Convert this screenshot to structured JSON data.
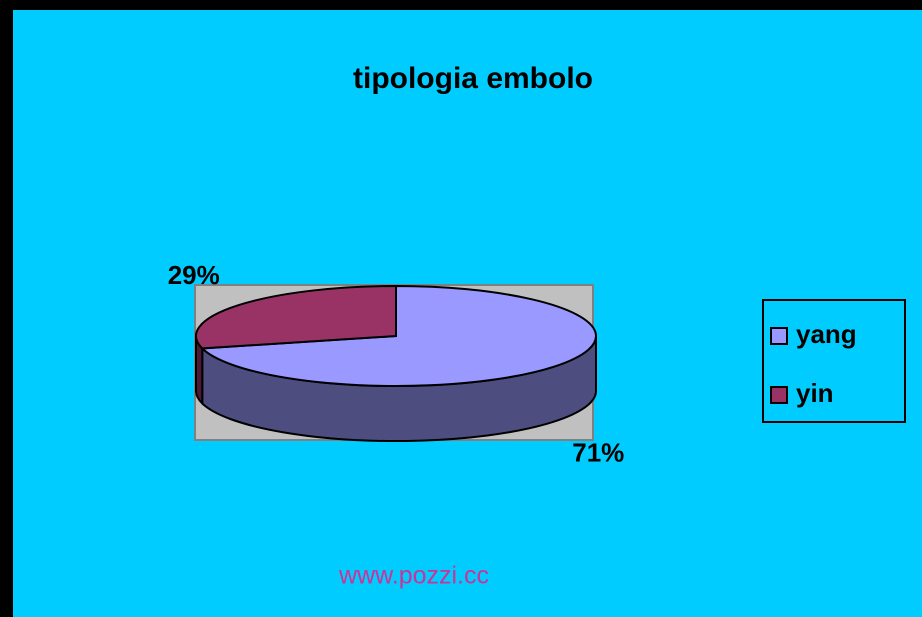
{
  "chart_data": {
    "type": "pie",
    "title": "tipologia embolo",
    "categories": [
      "yang",
      "yin"
    ],
    "values": [
      71,
      29
    ],
    "value_labels": [
      "71%",
      "29%"
    ],
    "colors": [
      "#9999ff",
      "#993366"
    ],
    "side_colors": [
      "#4d4d80",
      "#4d1a33"
    ],
    "legend": "right"
  },
  "footer": "www.pozzi.cc"
}
